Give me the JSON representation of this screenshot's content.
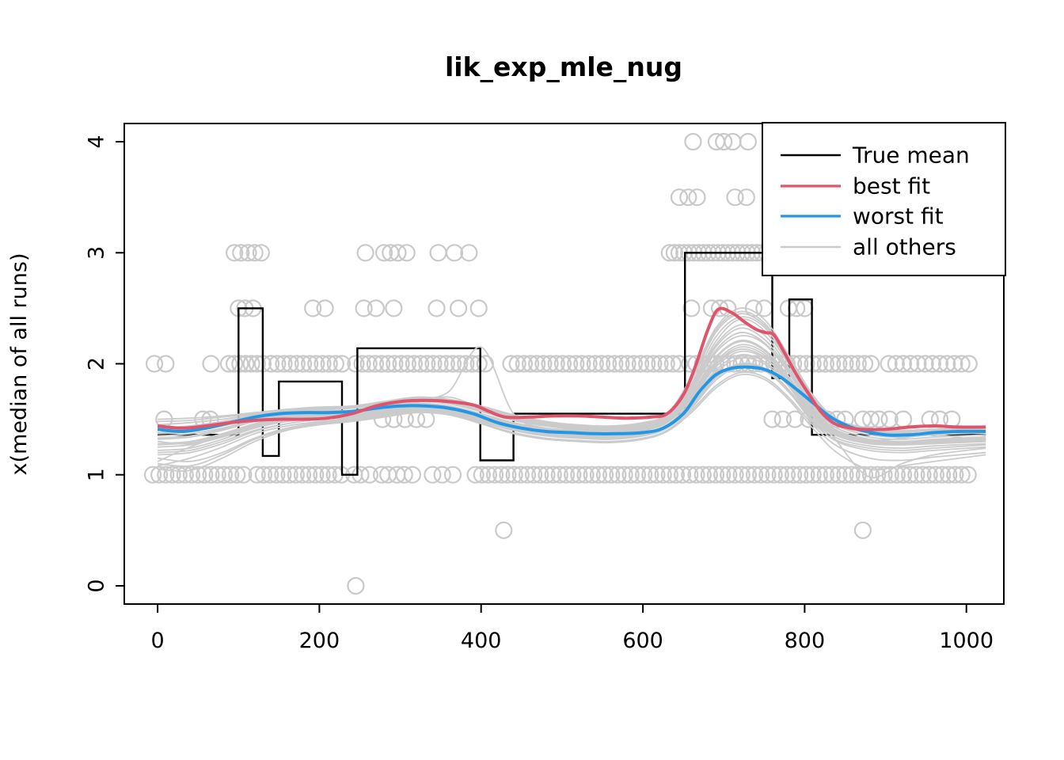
{
  "title": "lik_exp_mle_nug",
  "ylabel": "x(median of all runs)",
  "colors": {
    "true_mean": "#000000",
    "best_fit": "#DF536B",
    "worst_fit": "#2297E6",
    "others": "#CBCBCB",
    "points": "#C9C9C9",
    "axis": "#000000"
  },
  "legend": {
    "items": [
      {
        "label": "True mean",
        "color_key": "true_mean"
      },
      {
        "label": "best fit",
        "color_key": "best_fit"
      },
      {
        "label": "worst fit",
        "color_key": "worst_fit"
      },
      {
        "label": "all others",
        "color_key": "others"
      }
    ]
  },
  "chart_data": {
    "type": "line",
    "title": "lik_exp_mle_nug",
    "xlabel": "",
    "ylabel": "x(median of all runs)",
    "x_ticks": [
      0,
      200,
      400,
      600,
      800,
      1000
    ],
    "y_ticks": [
      0,
      1,
      2,
      3,
      4
    ],
    "xlim": [
      -41.2,
      1046.3
    ],
    "ylim": [
      -0.1643,
      4.1643
    ],
    "grid": false,
    "legend_position": "top-right",
    "true_mean_steps": [
      [
        0,
        100,
        1.36
      ],
      [
        100,
        130,
        2.5
      ],
      [
        130,
        150,
        1.17
      ],
      [
        150,
        228,
        1.84
      ],
      [
        228,
        247,
        1.0
      ],
      [
        247,
        399,
        2.14
      ],
      [
        399,
        440,
        1.13
      ],
      [
        440,
        652,
        1.55
      ],
      [
        652,
        760,
        3.0
      ],
      [
        760,
        781,
        1.87
      ],
      [
        781,
        809,
        2.58
      ],
      [
        809,
        1024,
        1.36
      ]
    ],
    "best_fit": {
      "x": [
        0,
        30,
        60,
        90,
        120,
        150,
        180,
        210,
        240,
        270,
        300,
        330,
        360,
        390,
        410,
        430,
        460,
        490,
        520,
        550,
        580,
        610,
        630,
        650,
        665,
        680,
        693,
        710,
        725,
        740,
        752,
        762,
        775,
        790,
        805,
        820,
        835,
        850,
        870,
        900,
        930,
        960,
        990,
        1024
      ],
      "y": [
        1.44,
        1.42,
        1.44,
        1.47,
        1.49,
        1.5,
        1.5,
        1.51,
        1.55,
        1.62,
        1.66,
        1.67,
        1.66,
        1.63,
        1.57,
        1.52,
        1.52,
        1.53,
        1.53,
        1.52,
        1.51,
        1.52,
        1.55,
        1.72,
        1.98,
        2.3,
        2.49,
        2.46,
        2.38,
        2.31,
        2.28,
        2.26,
        2.1,
        1.9,
        1.73,
        1.57,
        1.47,
        1.43,
        1.41,
        1.41,
        1.43,
        1.44,
        1.43,
        1.43
      ]
    },
    "worst_fit": {
      "x": [
        0,
        30,
        60,
        90,
        120,
        150,
        180,
        210,
        240,
        270,
        300,
        330,
        360,
        390,
        420,
        450,
        480,
        510,
        540,
        570,
        600,
        625,
        650,
        670,
        690,
        710,
        730,
        750,
        770,
        790,
        810,
        830,
        850,
        870,
        900,
        930,
        960,
        990,
        1024
      ],
      "y": [
        1.41,
        1.39,
        1.42,
        1.47,
        1.52,
        1.55,
        1.56,
        1.56,
        1.57,
        1.6,
        1.62,
        1.62,
        1.6,
        1.55,
        1.47,
        1.42,
        1.39,
        1.38,
        1.37,
        1.37,
        1.38,
        1.42,
        1.55,
        1.75,
        1.9,
        1.96,
        1.97,
        1.95,
        1.88,
        1.77,
        1.65,
        1.53,
        1.45,
        1.4,
        1.36,
        1.36,
        1.38,
        1.39,
        1.39
      ]
    },
    "others": {
      "x": [
        0,
        40,
        80,
        120,
        160,
        200,
        240,
        280,
        320,
        360,
        400,
        440,
        480,
        520,
        560,
        600,
        630,
        660,
        690,
        720,
        750,
        780,
        810,
        840,
        880,
        920,
        960,
        1024
      ],
      "curves": [
        [
          1.2,
          1.22,
          1.3,
          1.4,
          1.46,
          1.5,
          1.52,
          1.56,
          1.6,
          1.58,
          1.5,
          1.42,
          1.38,
          1.36,
          1.35,
          1.38,
          1.44,
          1.65,
          1.92,
          2.05,
          2.0,
          1.8,
          1.5,
          1.35,
          1.28,
          1.27,
          1.28,
          1.3
        ],
        [
          1.3,
          1.28,
          1.35,
          1.45,
          1.52,
          1.55,
          1.56,
          1.6,
          1.64,
          1.62,
          1.55,
          1.47,
          1.42,
          1.4,
          1.39,
          1.42,
          1.5,
          1.75,
          2.1,
          2.25,
          2.18,
          1.92,
          1.6,
          1.4,
          1.32,
          1.3,
          1.31,
          1.33
        ],
        [
          1.4,
          1.42,
          1.47,
          1.52,
          1.56,
          1.58,
          1.58,
          1.62,
          1.66,
          1.64,
          1.58,
          1.5,
          1.45,
          1.42,
          1.41,
          1.44,
          1.52,
          1.8,
          2.2,
          2.4,
          2.3,
          2.0,
          1.65,
          1.45,
          1.38,
          1.36,
          1.37,
          1.4
        ],
        [
          1.15,
          1.12,
          1.2,
          1.33,
          1.42,
          1.47,
          1.5,
          1.54,
          1.58,
          1.56,
          1.48,
          1.4,
          1.35,
          1.33,
          1.32,
          1.35,
          1.42,
          1.6,
          1.85,
          1.98,
          1.94,
          1.75,
          1.48,
          1.3,
          1.22,
          1.2,
          1.22,
          1.25
        ],
        [
          1.45,
          1.47,
          1.5,
          1.54,
          1.57,
          1.59,
          1.6,
          1.64,
          1.68,
          1.66,
          1.6,
          1.52,
          1.47,
          1.44,
          1.43,
          1.46,
          1.54,
          1.85,
          2.28,
          2.45,
          2.35,
          2.05,
          1.7,
          1.48,
          1.4,
          1.38,
          1.4,
          1.42
        ],
        [
          1.25,
          1.27,
          1.34,
          1.43,
          1.49,
          1.52,
          1.54,
          1.58,
          1.62,
          1.6,
          1.53,
          1.45,
          1.4,
          1.38,
          1.37,
          1.4,
          1.47,
          1.7,
          2.0,
          2.15,
          2.08,
          1.85,
          1.55,
          1.38,
          1.3,
          1.28,
          1.3,
          1.32
        ],
        [
          1.35,
          1.37,
          1.42,
          1.49,
          1.54,
          1.56,
          1.57,
          1.61,
          1.65,
          1.7,
          1.6,
          1.5,
          1.44,
          1.41,
          1.4,
          1.43,
          1.51,
          1.78,
          2.15,
          2.32,
          2.22,
          1.95,
          1.62,
          1.42,
          1.34,
          1.32,
          1.34,
          1.36
        ],
        [
          1.1,
          1.08,
          1.18,
          1.32,
          1.41,
          1.46,
          1.49,
          1.53,
          1.57,
          1.55,
          1.47,
          1.38,
          1.33,
          1.31,
          1.3,
          1.33,
          1.4,
          1.58,
          1.8,
          1.92,
          1.88,
          1.7,
          1.45,
          1.26,
          1.15,
          1.13,
          1.16,
          1.2
        ],
        [
          1.5,
          1.51,
          1.53,
          1.56,
          1.59,
          1.61,
          1.62,
          1.66,
          1.7,
          1.68,
          1.62,
          1.54,
          1.48,
          1.45,
          1.44,
          1.47,
          1.55,
          1.88,
          2.32,
          2.5,
          2.4,
          2.08,
          1.72,
          1.5,
          1.42,
          1.4,
          1.41,
          1.43
        ],
        [
          1.28,
          1.3,
          1.37,
          1.46,
          1.52,
          1.55,
          1.56,
          1.6,
          1.64,
          1.62,
          1.55,
          1.46,
          1.41,
          1.39,
          1.38,
          1.41,
          1.48,
          1.72,
          2.05,
          2.2,
          2.12,
          1.88,
          1.57,
          1.39,
          1.31,
          1.29,
          1.31,
          1.33
        ],
        [
          1.32,
          1.34,
          1.4,
          1.48,
          1.53,
          1.56,
          1.57,
          1.62,
          1.68,
          1.75,
          2.15,
          1.55,
          1.42,
          1.4,
          1.39,
          1.42,
          1.49,
          1.73,
          2.06,
          2.21,
          2.13,
          1.89,
          1.58,
          1.4,
          1.32,
          1.3,
          1.32,
          1.34
        ],
        [
          1.05,
          1.04,
          1.15,
          1.3,
          1.4,
          1.45,
          1.48,
          1.52,
          1.56,
          1.54,
          1.46,
          1.37,
          1.32,
          1.3,
          1.29,
          1.32,
          1.39,
          1.56,
          1.78,
          1.9,
          1.86,
          1.68,
          1.42,
          1.2,
          1.05,
          1.08,
          1.12,
          1.18
        ],
        [
          1.42,
          1.44,
          1.48,
          1.53,
          1.57,
          1.59,
          1.6,
          1.63,
          1.67,
          1.65,
          1.59,
          1.51,
          1.46,
          1.43,
          1.42,
          1.45,
          1.53,
          1.82,
          2.24,
          2.42,
          2.33,
          2.02,
          1.67,
          1.46,
          1.39,
          1.37,
          1.38,
          1.41
        ],
        [
          1.22,
          1.24,
          1.32,
          1.42,
          1.48,
          1.51,
          1.53,
          1.57,
          1.61,
          1.59,
          1.51,
          1.43,
          1.38,
          1.36,
          1.35,
          1.38,
          1.45,
          1.66,
          1.94,
          2.08,
          2.02,
          1.82,
          1.52,
          1.36,
          1.29,
          1.27,
          1.29,
          1.31
        ],
        [
          1.38,
          1.4,
          1.45,
          1.51,
          1.55,
          1.57,
          1.58,
          1.62,
          1.66,
          1.64,
          1.57,
          1.49,
          1.44,
          1.41,
          1.4,
          1.43,
          1.51,
          1.76,
          2.12,
          2.28,
          2.19,
          1.93,
          1.6,
          1.3,
          0.98,
          1.1,
          1.18,
          1.24
        ],
        [
          1.18,
          1.2,
          1.28,
          1.39,
          1.46,
          1.5,
          1.52,
          1.56,
          1.6,
          1.58,
          1.5,
          1.42,
          1.37,
          1.35,
          1.34,
          1.37,
          1.44,
          1.63,
          1.88,
          2.0,
          1.96,
          1.77,
          1.49,
          1.33,
          1.26,
          1.24,
          1.26,
          1.28
        ],
        [
          1.33,
          1.35,
          1.41,
          1.48,
          1.53,
          1.55,
          1.56,
          1.6,
          1.64,
          1.62,
          1.54,
          1.46,
          1.41,
          1.39,
          1.38,
          1.41,
          1.48,
          1.71,
          2.02,
          2.17,
          2.1,
          1.86,
          1.56,
          1.38,
          1.31,
          1.33,
          1.36,
          1.3
        ],
        [
          1.12,
          1.25,
          1.35,
          1.44,
          1.5,
          1.53,
          1.55,
          1.59,
          1.63,
          1.61,
          1.53,
          1.45,
          1.4,
          1.38,
          1.37,
          1.4,
          1.47,
          1.68,
          1.97,
          2.11,
          2.05,
          1.84,
          1.54,
          1.37,
          1.3,
          1.28,
          1.3,
          1.32
        ],
        [
          1.27,
          1.29,
          1.36,
          1.45,
          1.51,
          1.54,
          1.55,
          1.59,
          1.63,
          1.61,
          1.54,
          1.45,
          1.4,
          1.38,
          1.37,
          1.4,
          1.47,
          1.69,
          1.99,
          2.13,
          2.06,
          1.83,
          1.53,
          1.37,
          1.3,
          1.28,
          1.3,
          1.32
        ],
        [
          1.37,
          1.39,
          1.44,
          1.5,
          1.55,
          1.57,
          1.58,
          1.62,
          1.66,
          1.64,
          1.57,
          1.49,
          1.44,
          1.42,
          1.41,
          1.44,
          1.52,
          1.79,
          2.17,
          2.35,
          2.26,
          1.97,
          1.63,
          1.44,
          1.36,
          1.34,
          1.36,
          1.38
        ],
        [
          1.08,
          1.15,
          1.25,
          1.37,
          1.44,
          1.48,
          1.51,
          1.55,
          1.59,
          1.57,
          1.49,
          1.41,
          1.36,
          1.34,
          1.33,
          1.36,
          1.43,
          1.61,
          1.87,
          1.99,
          1.95,
          1.76,
          1.47,
          1.31,
          1.24,
          1.22,
          1.24,
          1.27
        ],
        [
          1.48,
          1.49,
          1.52,
          1.55,
          1.58,
          1.6,
          1.61,
          1.65,
          1.69,
          1.67,
          1.61,
          1.53,
          1.47,
          1.44,
          1.43,
          1.46,
          1.54,
          1.86,
          2.3,
          2.47,
          2.37,
          2.06,
          1.71,
          1.49,
          1.41,
          1.39,
          1.4,
          1.42
        ]
      ]
    },
    "points": [
      {
        "y": 4.0,
        "x": [
          662,
          691,
          700,
          711,
          730
        ]
      },
      {
        "y": 3.5,
        "x": [
          645,
          656,
          667,
          714,
          728
        ]
      },
      {
        "y": 3.0,
        "x": [
          95,
          103,
          112,
          120,
          128,
          257,
          280,
          288,
          297,
          308,
          347,
          367,
          385
        ],
        "runs": [
          [
            633,
            758,
            6
          ]
        ]
      },
      {
        "y": 2.5,
        "x": [
          100,
          108,
          118,
          192,
          207,
          255,
          270,
          292,
          345,
          372,
          397,
          660,
          685,
          695,
          705,
          737,
          750,
          780,
          790,
          800
        ]
      },
      {
        "y": 2.0,
        "x": [
          -4,
          10,
          66
        ],
        "runs": [
          [
            88,
            130,
            7
          ],
          [
            140,
            230,
            8
          ],
          [
            245,
            409,
            8
          ],
          [
            437,
            645,
            8
          ],
          [
            658,
            888,
            8
          ],
          [
            904,
            1005,
            9
          ]
        ]
      },
      {
        "y": 1.5,
        "x": [
          8,
          56,
          65,
          278,
          292,
          306,
          320,
          332,
          760,
          773,
          788,
          805,
          815,
          828,
          840,
          850,
          872,
          882,
          892,
          905,
          922,
          955,
          967,
          982
        ]
      },
      {
        "y": 1.0,
        "x": [
          243,
          251,
          262,
          277,
          285,
          296,
          305,
          315,
          340,
          352,
          365
        ],
        "runs": [
          [
            -6,
            106,
            8
          ],
          [
            123,
            231,
            8
          ],
          [
            393,
            653,
            8
          ],
          [
            658,
            1006,
            8
          ]
        ]
      },
      {
        "y": 0.5,
        "x": [
          428,
          872
        ]
      },
      {
        "y": 0.0,
        "x": [
          245
        ]
      }
    ]
  }
}
